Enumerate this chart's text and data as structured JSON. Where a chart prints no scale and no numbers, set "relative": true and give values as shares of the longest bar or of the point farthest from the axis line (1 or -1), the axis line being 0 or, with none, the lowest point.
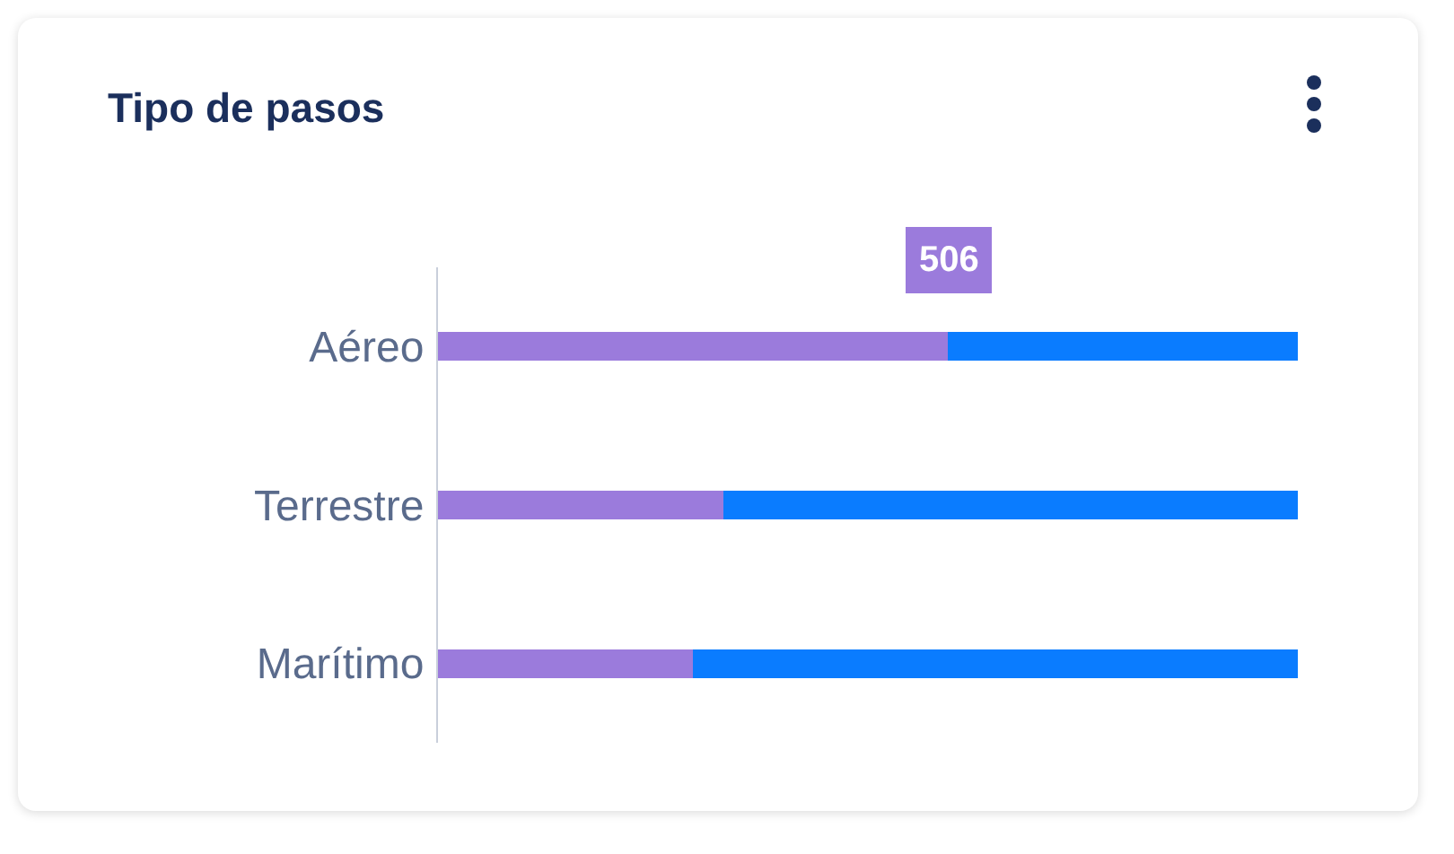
{
  "chart_data": {
    "type": "bar",
    "title": "Tipo de pasos",
    "orientation": "horizontal",
    "stacked": true,
    "relative": true,
    "categories": [
      "Aéreo",
      "Terrestre",
      "Marítimo"
    ],
    "series": [
      {
        "color": "#9b7bdc",
        "values": [
          0.593,
          0.332,
          0.296
        ]
      },
      {
        "color": "#0a7cff",
        "values": [
          0.407,
          0.668,
          0.704
        ]
      }
    ],
    "annotations": [
      {
        "text": "506",
        "x": 0.593,
        "y": "Aéreo"
      }
    ]
  }
}
